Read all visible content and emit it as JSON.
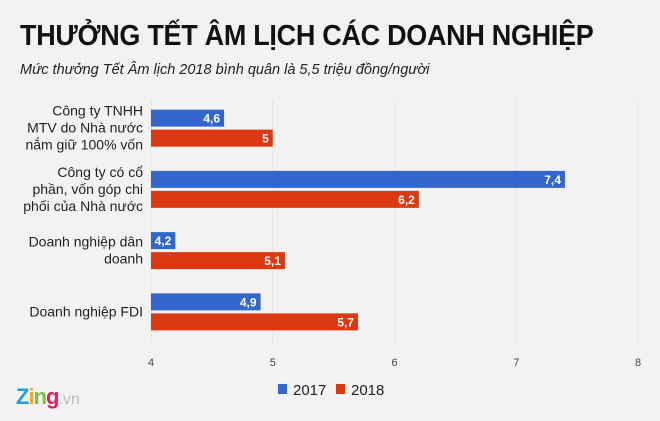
{
  "header": {
    "title": "THƯỞNG TẾT ÂM LỊCH CÁC DOANH NGHIỆP",
    "subtitle": "Mức thưởng Tết Âm lịch 2018 bình quân là 5,5 triệu đồng/người"
  },
  "logo": {
    "brand": "Zing",
    "suffix": ".vn"
  },
  "chart_data": {
    "type": "bar",
    "orientation": "horizontal",
    "categories": [
      [
        "Công ty TNHH",
        "MTV do Nhà nước",
        "nắm giữ 100% vốn"
      ],
      [
        "Công ty có cổ",
        "phần, vốn góp chi",
        "phối của Nhà nước"
      ],
      [
        "Doanh nghiệp dân",
        "doanh"
      ],
      [
        "Doanh nghiệp FDI"
      ]
    ],
    "series": [
      {
        "name": "2017",
        "values": [
          4.6,
          7.4,
          4.2,
          4.9
        ],
        "labels": [
          "4,6",
          "7,4",
          "4,2",
          "4,9"
        ],
        "color": "#3366cc"
      },
      {
        "name": "2018",
        "values": [
          5,
          6.2,
          5.1,
          5.7
        ],
        "labels": [
          "5",
          "6,2",
          "5,1",
          "5,7"
        ],
        "color": "#dc3912"
      }
    ],
    "xlim": [
      4,
      8
    ],
    "xticks": [
      "4",
      "5",
      "6",
      "7",
      "8"
    ],
    "grid": true,
    "legend": "bottom"
  }
}
